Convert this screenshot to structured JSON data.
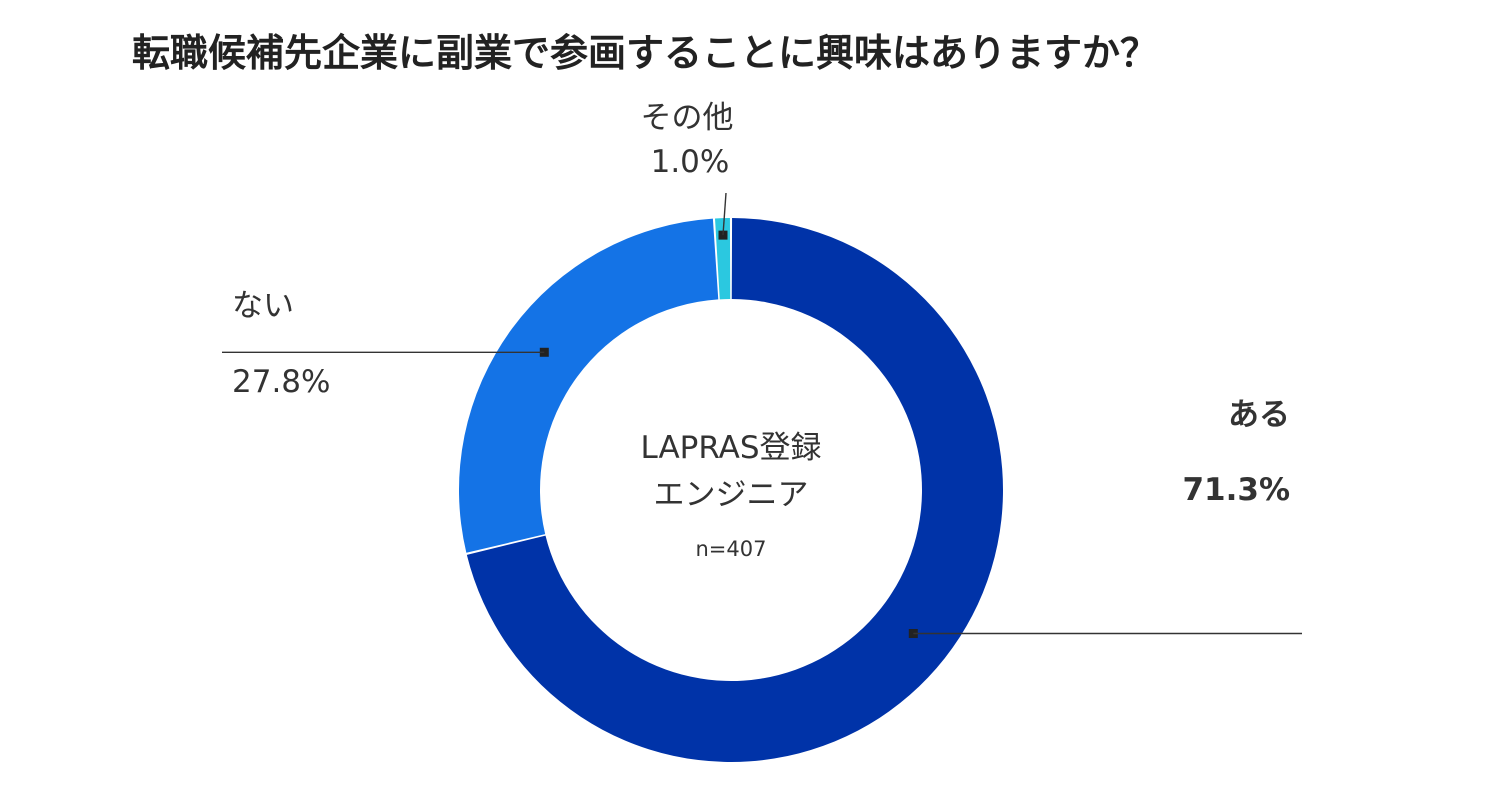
{
  "chart_data": {
    "type": "pie",
    "title": "転職候補先企業に副業で参画することに興味はありますか？",
    "center_label": [
      "LAPRAS登録",
      "エンジニア"
    ],
    "center_note": "n=407",
    "slices": [
      {
        "label": "ある",
        "value": 71.3,
        "value_label": "71.3%",
        "color": "#0033A8"
      },
      {
        "label": "ない",
        "value": 27.8,
        "value_label": "27.8%",
        "color": "#1473E6"
      },
      {
        "label": "その他",
        "value": 1.0,
        "value_label": "1.0%",
        "color": "#2BC8E0"
      }
    ]
  }
}
